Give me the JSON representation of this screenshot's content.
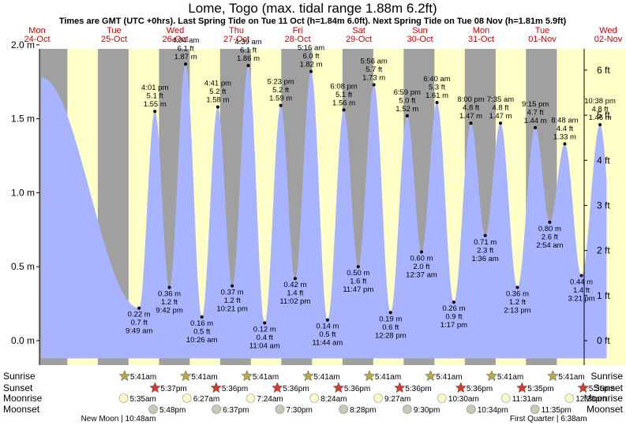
{
  "title": "Lome, Togo (max. tidal range 1.88m 6.2ft)",
  "subtitle": "Times are GMT (UTC +0hrs). Last Spring Tide on Tue 11 Oct (h=1.84m 6.0ft). Next Spring Tide on Tue 08 Nov (h=1.81m 5.9ft)",
  "days": [
    {
      "dow": "Mon",
      "date": "24-Oct"
    },
    {
      "dow": "Tue",
      "date": "25-Oct"
    },
    {
      "dow": "Wed",
      "date": "26-Oct"
    },
    {
      "dow": "Thu",
      "date": "27-Oct"
    },
    {
      "dow": "Fri",
      "date": "28-Oct"
    },
    {
      "dow": "Sat",
      "date": "29-Oct"
    },
    {
      "dow": "Sun",
      "date": "30-Oct"
    },
    {
      "dow": "Mon",
      "date": "31-Oct"
    },
    {
      "dow": "Tue",
      "date": "01-Nov"
    },
    {
      "dow": "Wed",
      "date": "02-Nov"
    }
  ],
  "chart_data": {
    "type": "area",
    "x_unit": "days from 24-Oct 00:00 GMT",
    "y_unit": "m",
    "ylim_m": [
      -0.15,
      2.1
    ],
    "y_ticks_m": [
      "0.0 m",
      "0.5 m",
      "1.0 m",
      "1.5 m",
      "2.0 m"
    ],
    "y_ticks_ft": [
      "0 ft",
      "1 ft",
      "2 ft",
      "3 ft",
      "4 ft",
      "5 ft",
      "6 ft"
    ],
    "daylight": [
      [
        0.7368,
        0.734
      ],
      [
        1.7368,
        1.734
      ],
      [
        2.7368,
        2.7333
      ],
      [
        3.7368,
        3.7333
      ],
      [
        4.7368,
        4.7333
      ],
      [
        5.7368,
        5.7333
      ],
      [
        6.7368,
        6.7333
      ],
      [
        7.7368,
        7.7326
      ],
      [
        8.7368,
        8.7326
      ]
    ],
    "tides": [
      {
        "t": "",
        "m": 1.78,
        "x": -0.19,
        "hide": true
      },
      {
        "t": "9:49 am",
        "ft": "0.7 ft",
        "h": "0.22 m",
        "m": 0.22,
        "x": 1.409
      },
      {
        "t": "4:01 pm",
        "ft": "5.1 ft",
        "h": "1.55 m",
        "m": 1.55,
        "x": 1.6674
      },
      {
        "t": "9:42 pm",
        "ft": "1.2 ft",
        "h": "0.36 m",
        "m": 0.36,
        "x": 1.9042
      },
      {
        "t": "4:04 am",
        "ft": "6.1 ft",
        "h": "1.87 m",
        "m": 1.87,
        "x": 2.1694
      },
      {
        "t": "10:26 am",
        "ft": "0.5 ft",
        "h": "0.16 m",
        "m": 0.16,
        "x": 2.4347
      },
      {
        "t": "4:41 pm",
        "ft": "5.2 ft",
        "h": "1.58 m",
        "m": 1.58,
        "x": 2.6951
      },
      {
        "t": "10:21 pm",
        "ft": "1.2 ft",
        "h": "0.37 m",
        "m": 0.37,
        "x": 2.9313
      },
      {
        "t": "4:39 am",
        "ft": "6.1 ft",
        "h": "1.86 m",
        "m": 1.86,
        "x": 3.1938
      },
      {
        "t": "11:04 am",
        "ft": "0.4 ft",
        "h": "0.12 m",
        "m": 0.12,
        "x": 3.4611
      },
      {
        "t": "5:23 pm",
        "ft": "5.2 ft",
        "h": "1.59 m",
        "m": 1.59,
        "x": 3.7243
      },
      {
        "t": "11:02 pm",
        "ft": "1.4 ft",
        "h": "0.42 m",
        "m": 0.42,
        "x": 3.9597
      },
      {
        "t": "5:16 am",
        "ft": "6.0 ft",
        "h": "1.82 m",
        "m": 1.82,
        "x": 4.2194
      },
      {
        "t": "11:44 am",
        "ft": "0.5 ft",
        "h": "0.14 m",
        "m": 0.14,
        "x": 4.4889
      },
      {
        "t": "6:08 pm",
        "ft": "5.1 ft",
        "h": "1.56 m",
        "m": 1.56,
        "x": 4.7556
      },
      {
        "t": "11:47 pm",
        "ft": "1.6 ft",
        "h": "0.50 m",
        "m": 0.5,
        "x": 4.991
      },
      {
        "t": "5:56 am",
        "ft": "5.7 ft",
        "h": "1.73 m",
        "m": 1.73,
        "x": 5.2472
      },
      {
        "t": "12:28 pm",
        "ft": "0.6 ft",
        "h": "0.19 m",
        "m": 0.19,
        "x": 5.5194
      },
      {
        "t": "6:59 pm",
        "ft": "5.0 ft",
        "h": "1.52 m",
        "m": 1.52,
        "x": 5.791
      },
      {
        "t": "12:37 am",
        "ft": "2.0 ft",
        "h": "0.60 m",
        "m": 0.6,
        "x": 6.0257
      },
      {
        "t": "6:40 am",
        "ft": "5.3 ft",
        "h": "1.61 m",
        "m": 1.61,
        "x": 6.2778
      },
      {
        "t": "1:17 pm",
        "ft": "0.9 ft",
        "h": "0.26 m",
        "m": 0.26,
        "x": 6.5535
      },
      {
        "t": "8:00 pm",
        "ft": "4.8 ft",
        "h": "1.47 m",
        "m": 1.47,
        "x": 6.8333
      },
      {
        "t": "1:36 am",
        "ft": "2.3 ft",
        "h": "0.71 m",
        "m": 0.71,
        "x": 7.0667
      },
      {
        "t": "7:35 am",
        "ft": "4.8 ft",
        "h": "1.47 m",
        "m": 1.47,
        "x": 7.316
      },
      {
        "t": "2:13 pm",
        "ft": "1.2 ft",
        "h": "0.36 m",
        "m": 0.36,
        "x": 7.5924
      },
      {
        "t": "9:15 pm",
        "ft": "4.7 ft",
        "h": "1.44 m",
        "m": 1.44,
        "x": 7.8854
      },
      {
        "t": "2:54 am",
        "ft": "2.6 ft",
        "h": "0.80 m",
        "m": 0.8,
        "x": 8.1208
      },
      {
        "t": "8:48 am",
        "ft": "4.4 ft",
        "h": "1.33 m",
        "m": 1.33,
        "x": 8.3667
      },
      {
        "t": "3:21 pm",
        "ft": "1.4 ft",
        "h": "0.44 m",
        "m": 0.44,
        "x": 8.6396
      },
      {
        "t": "10:38 pm",
        "ft": "4.8 ft",
        "h": "1.46 m",
        "m": 1.46,
        "x": 8.9431
      }
    ]
  },
  "rows": {
    "sunrise_label": "Sunrise",
    "sunset_label": "Sunset",
    "moonrise_label": "Moonrise",
    "moonset_label": "Moonset",
    "sunrise": [
      {
        "t": "5:41am",
        "x": 1.2368
      },
      {
        "t": "5:41am",
        "x": 2.2368
      },
      {
        "t": "5:41am",
        "x": 3.2368
      },
      {
        "t": "5:41am",
        "x": 4.2368
      },
      {
        "t": "5:41am",
        "x": 5.2368
      },
      {
        "t": "5:41am",
        "x": 6.2368
      },
      {
        "t": "5:41am",
        "x": 7.2368
      },
      {
        "t": "5:41am",
        "x": 8.2368
      }
    ],
    "sunset": [
      {
        "t": "5:37pm",
        "x": 1.734
      },
      {
        "t": "5:36pm",
        "x": 2.7333
      },
      {
        "t": "5:36pm",
        "x": 3.7333
      },
      {
        "t": "5:36pm",
        "x": 4.7333
      },
      {
        "t": "5:36pm",
        "x": 5.7333
      },
      {
        "t": "5:36pm",
        "x": 6.7333
      },
      {
        "t": "5:35pm",
        "x": 7.7326
      },
      {
        "t": "5:35pm",
        "x": 8.7326
      }
    ],
    "moonrise": [
      {
        "t": "5:35am",
        "x": 1.2326
      },
      {
        "t": "6:27am",
        "x": 2.2688
      },
      {
        "t": "7:24am",
        "x": 3.3083
      },
      {
        "t": "8:24am",
        "x": 4.35
      },
      {
        "t": "9:27am",
        "x": 5.3938
      },
      {
        "t": "10:30am",
        "x": 6.4375
      },
      {
        "t": "11:31am",
        "x": 7.4799
      },
      {
        "t": "12:28pm",
        "x": 8.5194
      }
    ],
    "moonset": [
      {
        "t": "5:48pm",
        "x": 1.7417
      },
      {
        "t": "6:37pm",
        "x": 2.7757
      },
      {
        "t": "7:30pm",
        "x": 3.8125
      },
      {
        "t": "8:28pm",
        "x": 4.8528
      },
      {
        "t": "9:30pm",
        "x": 5.8958
      },
      {
        "t": "10:34pm",
        "x": 6.9403
      },
      {
        "t": "11:35pm",
        "x": 7.9826
      }
    ],
    "phases": [
      {
        "t": "New Moon | 10:48am",
        "x": 1.2
      },
      {
        "t": "First Quarter | 6:38am",
        "x": 8.1
      }
    ]
  },
  "colors": {
    "night": "#a0a0a0",
    "day": "#ffffc8",
    "water": "#a8b4ff",
    "day_text": "#cc0000",
    "sunrise_star": "#b4aa46",
    "sunset_star": "#d23c2d",
    "moonrise": "#fff8c8",
    "moonset": "#c8c8b4"
  }
}
